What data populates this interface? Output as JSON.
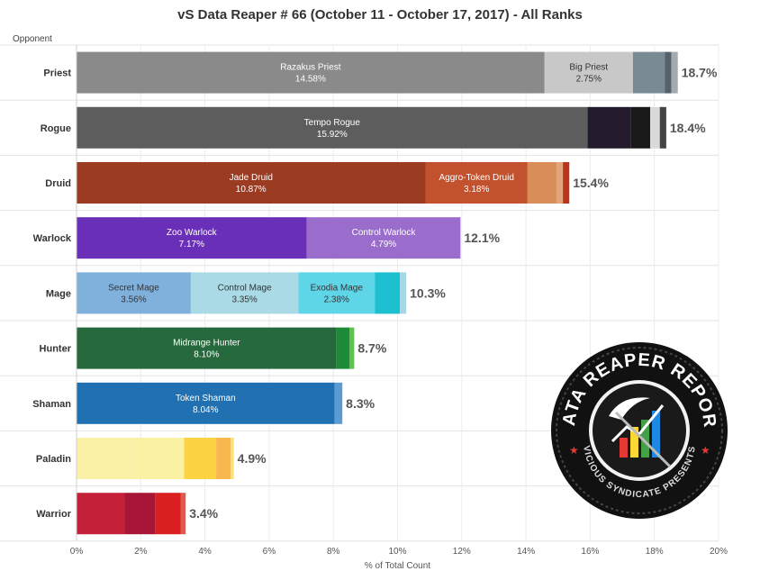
{
  "chart_data": {
    "type": "bar",
    "orientation": "horizontal",
    "stacked": true,
    "title": "vS Data Reaper # 66 (October 11 - October 17, 2017) - All Ranks",
    "row_header": "Opponent",
    "xlabel": "% of Total Count",
    "xlim": [
      0,
      20
    ],
    "xticks": [
      "0%",
      "2%",
      "4%",
      "6%",
      "8%",
      "10%",
      "12%",
      "14%",
      "16%",
      "18%",
      "20%"
    ],
    "grid": true,
    "categories": [
      {
        "name": "Priest",
        "total": "18.7%",
        "segments": [
          {
            "name": "Razakus Priest",
            "value": 14.58,
            "label": "14.58%",
            "color": "#8a8a8a",
            "text_color": "#ffffff"
          },
          {
            "name": "Big Priest",
            "value": 2.75,
            "label": "2.75%",
            "color": "#c8c8c8",
            "text_color": "#333333"
          },
          {
            "value": 1.0,
            "color": "#7a8a95"
          },
          {
            "value": 0.2,
            "color": "#56616b"
          },
          {
            "value": 0.2,
            "color": "#a3aab0"
          }
        ]
      },
      {
        "name": "Rogue",
        "total": "18.4%",
        "segments": [
          {
            "name": "Tempo Rogue",
            "value": 15.92,
            "label": "15.92%",
            "color": "#5d5d5d",
            "text_color": "#ffffff"
          },
          {
            "value": 1.35,
            "color": "#231a2b"
          },
          {
            "value": 0.6,
            "color": "#1a1a1a"
          },
          {
            "value": 0.3,
            "color": "#d9d9d9"
          },
          {
            "value": 0.2,
            "color": "#444444"
          }
        ]
      },
      {
        "name": "Druid",
        "total": "15.4%",
        "segments": [
          {
            "name": "Jade Druid",
            "value": 10.87,
            "label": "10.87%",
            "color": "#9b3b22",
            "text_color": "#ffffff"
          },
          {
            "name": "Aggro-Token Druid",
            "value": 3.18,
            "label": "3.18%",
            "color": "#c2512d",
            "text_color": "#ffffff"
          },
          {
            "value": 0.9,
            "color": "#d98d58"
          },
          {
            "value": 0.2,
            "color": "#e5a37a"
          },
          {
            "value": 0.2,
            "color": "#b9361d"
          }
        ]
      },
      {
        "name": "Warlock",
        "total": "12.1%",
        "segments": [
          {
            "name": "Zoo Warlock",
            "value": 7.17,
            "label": "7.17%",
            "color": "#6a2fb8",
            "text_color": "#ffffff"
          },
          {
            "name": "Control Warlock",
            "value": 4.79,
            "label": "4.79%",
            "color": "#9a6dcc",
            "text_color": "#ffffff"
          }
        ]
      },
      {
        "name": "Mage",
        "total": "10.3%",
        "segments": [
          {
            "name": "Secret Mage",
            "value": 3.56,
            "label": "3.56%",
            "color": "#80b1dd",
            "text_color": "#333333"
          },
          {
            "name": "Control Mage",
            "value": 3.35,
            "label": "3.35%",
            "color": "#a9dae6",
            "text_color": "#333333"
          },
          {
            "name": "Exodia Mage",
            "value": 2.38,
            "label": "2.38%",
            "color": "#5fd5e8",
            "text_color": "#333333"
          },
          {
            "value": 0.78,
            "color": "#1cc0d0"
          },
          {
            "value": 0.2,
            "color": "#a6d8e6"
          }
        ]
      },
      {
        "name": "Hunter",
        "total": "8.7%",
        "segments": [
          {
            "name": "Midrange Hunter",
            "value": 8.1,
            "label": "8.10%",
            "color": "#26693d",
            "text_color": "#ffffff"
          },
          {
            "value": 0.4,
            "color": "#1d8a3a"
          },
          {
            "value": 0.15,
            "color": "#5fbf55"
          }
        ]
      },
      {
        "name": "Shaman",
        "total": "8.3%",
        "segments": [
          {
            "name": "Token Shaman",
            "value": 8.04,
            "label": "8.04%",
            "color": "#2171b2",
            "text_color": "#ffffff"
          },
          {
            "value": 0.24,
            "color": "#5b9bd4"
          }
        ]
      },
      {
        "name": "Paladin",
        "total": "4.9%",
        "segments": [
          {
            "value": 1.85,
            "color": "#faf0a6"
          },
          {
            "value": 1.5,
            "color": "#fbf1a3"
          },
          {
            "value": 1.0,
            "color": "#fcd341"
          },
          {
            "value": 0.45,
            "color": "#f9b84e"
          },
          {
            "value": 0.1,
            "color": "#fce073"
          }
        ]
      },
      {
        "name": "Warrior",
        "total": "3.4%",
        "segments": [
          {
            "value": 1.5,
            "color": "#c5203a"
          },
          {
            "value": 0.95,
            "color": "#a71637"
          },
          {
            "value": 0.8,
            "color": "#d91f1f"
          },
          {
            "value": 0.15,
            "color": "#e2584b"
          }
        ]
      }
    ]
  },
  "logo": {
    "title": "DATA REAPER REPORT",
    "subtitle": "VICIOUS SYNDICATE PRESENTS"
  }
}
